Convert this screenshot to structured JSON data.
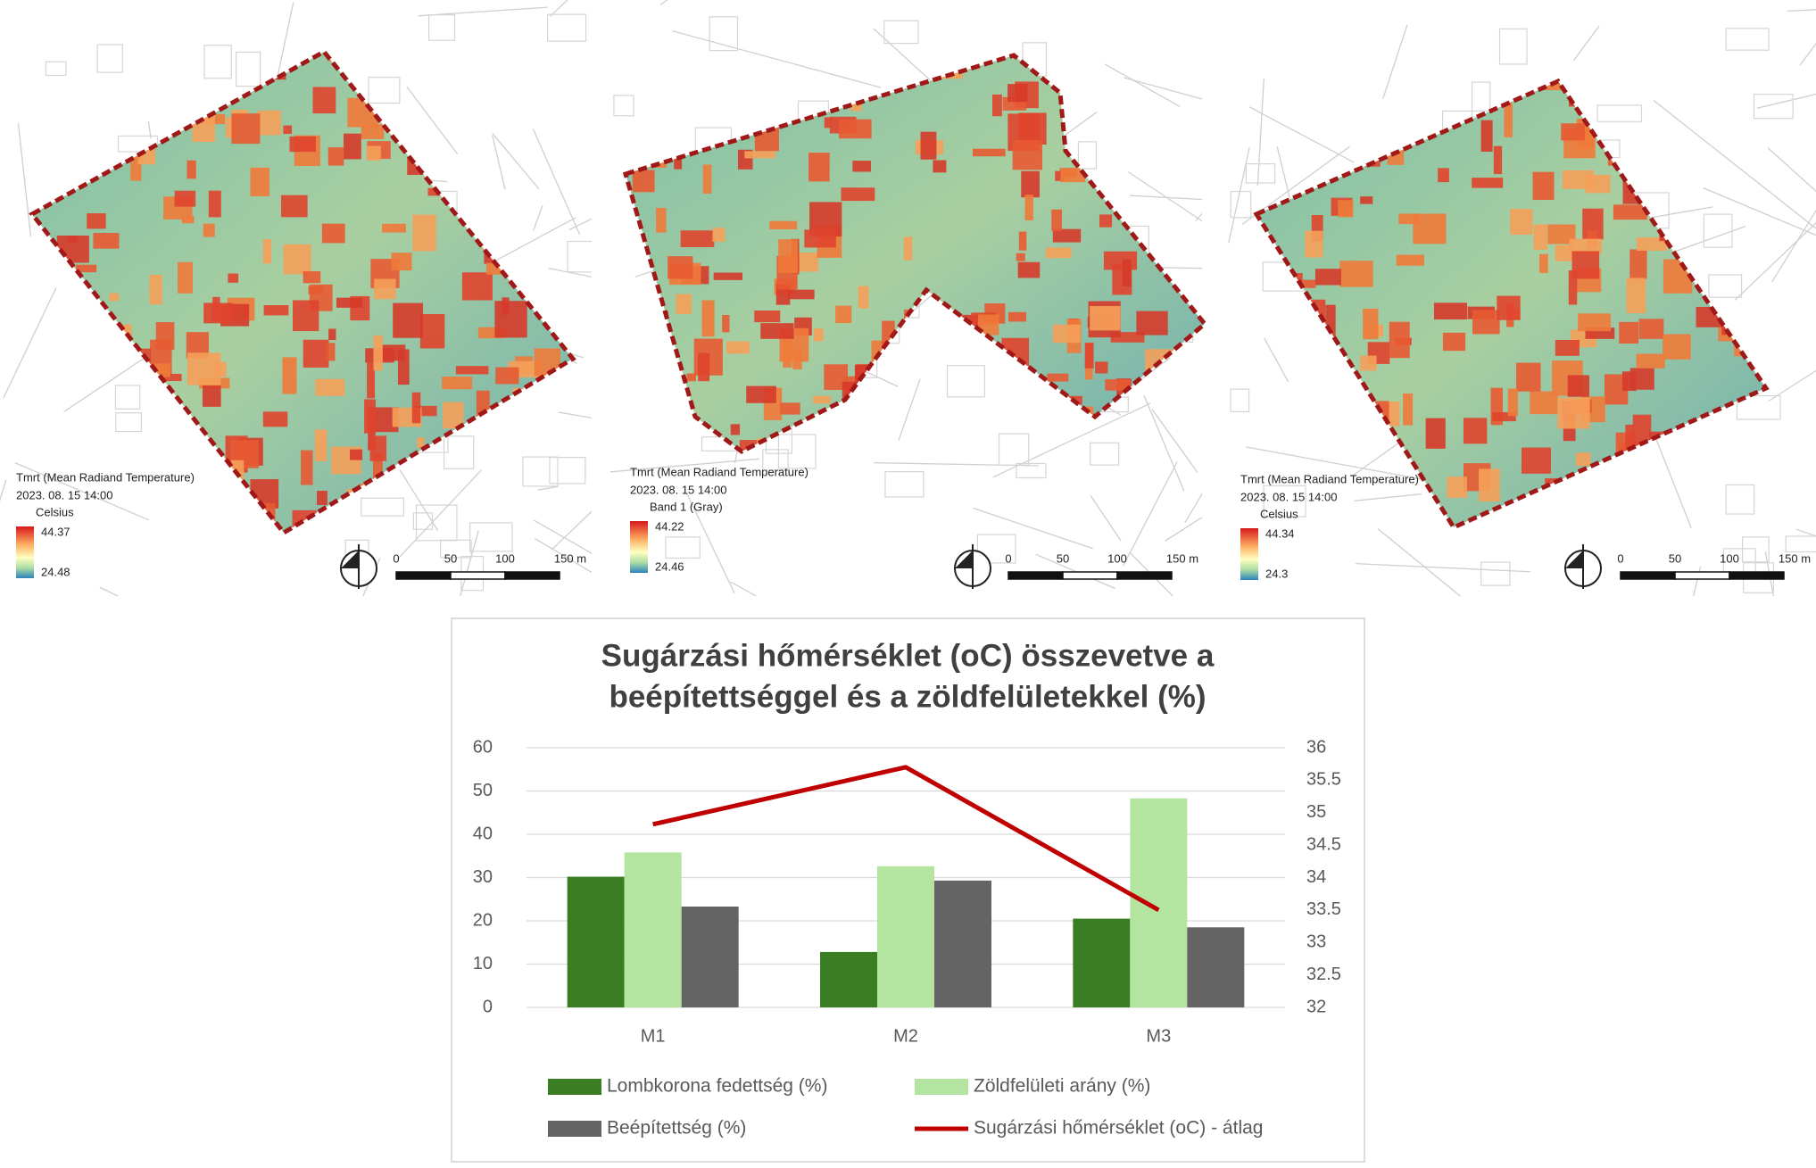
{
  "maps": [
    {
      "legend_title": "Tmrt (Mean Radiand Temperature)",
      "date": "2023. 08. 15 14:00",
      "unit": "Celsius",
      "max": "44.37",
      "min": "24.48",
      "scale": [
        "0",
        "50",
        "100",
        "150 m"
      ]
    },
    {
      "legend_title": "Tmrt (Mean Radiand Temperature)",
      "date": "2023. 08. 15 14:00",
      "unit": "Band 1 (Gray)",
      "max": "44.22",
      "min": "24.46",
      "scale": [
        "0",
        "50",
        "100",
        "150 m"
      ]
    },
    {
      "legend_title": "Tmrt (Mean Radiand Temperature)",
      "date": "2023. 08. 15 14:00",
      "unit": "Celsius",
      "max": "44.34",
      "min": "24.3",
      "scale": [
        "0",
        "50",
        "100",
        "150 m"
      ]
    }
  ],
  "chart_data": {
    "type": "bar",
    "title": [
      "Sugárzási hőmérséklet (oC) összevetve a",
      "beépítettséggel és a zöldfelületekkel (%)"
    ],
    "categories": [
      "M1",
      "M2",
      "M3"
    ],
    "series": [
      {
        "name": "Lombkorona fedettség (%)",
        "color": "#3a7d22",
        "values": [
          30.2,
          12.8,
          20.5
        ]
      },
      {
        "name": "Zöldfelületi arány (%)",
        "color": "#b3e5a1",
        "values": [
          35.8,
          32.6,
          48.3
        ]
      },
      {
        "name": "Beépítettség (%)",
        "color": "#646464",
        "values": [
          23.3,
          29.3,
          18.5
        ]
      },
      {
        "name": "Sugárzási hőmérséklet (oC) - átlag",
        "color": "#c00000",
        "type": "line",
        "axis": "y2",
        "values": [
          34.82,
          35.7,
          33.5
        ]
      }
    ],
    "ylim": [
      0,
      60
    ],
    "yticks": [
      0,
      10,
      20,
      30,
      40,
      50,
      60
    ],
    "y2lim": [
      32,
      36
    ],
    "y2ticks": [
      32,
      32.5,
      33,
      33.5,
      34,
      34.5,
      35,
      35.5,
      36
    ],
    "grid": true
  }
}
